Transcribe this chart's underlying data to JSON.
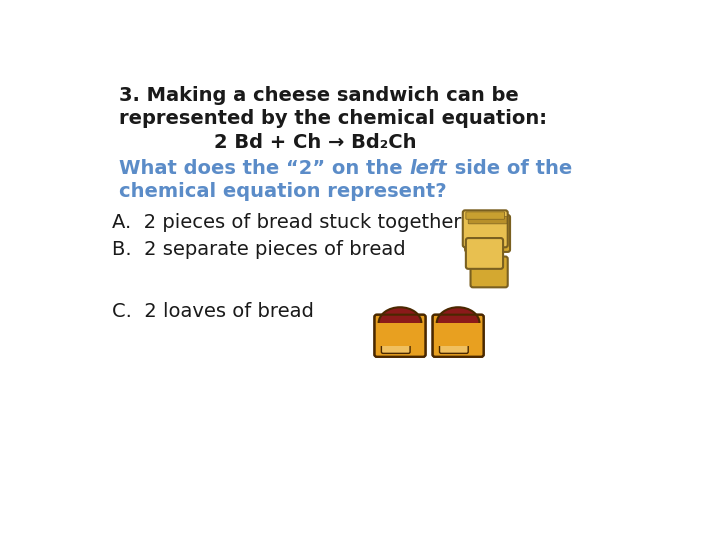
{
  "bg_color": "#ffffff",
  "line1": "3. Making a cheese sandwich can be",
  "line2": "represented by the chemical equation:",
  "equation": "2 Bd + Ch → Bd₂Ch",
  "q_part1": "What does the “2” on the ",
  "q_italic": "left",
  "q_part2": " side of the",
  "q_line2": "chemical equation represent?",
  "answer_a": "A.  2 pieces of bread stuck together",
  "answer_b": "B.  2 separate pieces of bread",
  "answer_c": "C.  2 loaves of bread",
  "black_color": "#1a1a1a",
  "blue_color": "#5b8cc8",
  "title_fontsize": 14,
  "question_fontsize": 14,
  "answer_fontsize": 14
}
